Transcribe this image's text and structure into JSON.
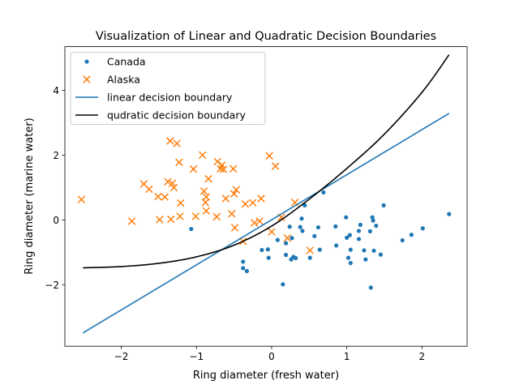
{
  "chart_data": {
    "type": "scatter",
    "title": "Visualization of Linear and Quadratic Decision Boundaries",
    "xlabel": "Ring diameter (fresh water)",
    "ylabel": "Ring diameter (marine water)",
    "xlim": [
      -2.75,
      2.6
    ],
    "ylim": [
      -3.9,
      5.35
    ],
    "xticks": [
      -2,
      -1,
      0,
      1,
      2
    ],
    "yticks": [
      -2,
      0,
      2,
      4
    ],
    "legend_position": "top-left",
    "grid": false,
    "series": [
      {
        "name": "Canada",
        "kind": "scatter",
        "marker": "dot",
        "color": "#1f77b4",
        "points": [
          [
            -1.07,
            -0.28
          ],
          [
            -0.38,
            -1.29
          ],
          [
            -0.38,
            -1.49
          ],
          [
            -0.33,
            -1.58
          ],
          [
            -0.13,
            -0.93
          ],
          [
            -0.05,
            -0.91
          ],
          [
            -0.04,
            -1.17
          ],
          [
            0.08,
            -0.62
          ],
          [
            0.15,
            -1.99
          ],
          [
            0.19,
            -0.72
          ],
          [
            0.19,
            -1.08
          ],
          [
            0.24,
            -0.21
          ],
          [
            0.26,
            -1.22
          ],
          [
            0.27,
            -0.56
          ],
          [
            0.29,
            -1.14
          ],
          [
            0.32,
            -1.18
          ],
          [
            0.38,
            -0.22
          ],
          [
            0.4,
            0.04
          ],
          [
            0.41,
            -0.34
          ],
          [
            0.44,
            0.45
          ],
          [
            0.51,
            -1.17
          ],
          [
            0.57,
            -0.5
          ],
          [
            0.62,
            -0.23
          ],
          [
            0.64,
            -0.92
          ],
          [
            0.69,
            0.85
          ],
          [
            0.85,
            -0.2
          ],
          [
            0.86,
            -0.79
          ],
          [
            0.99,
            0.08
          ],
          [
            1.0,
            -0.55
          ],
          [
            1.02,
            -1.17
          ],
          [
            1.04,
            -0.47
          ],
          [
            1.05,
            -1.33
          ],
          [
            1.05,
            -0.92
          ],
          [
            1.16,
            -0.34
          ],
          [
            1.16,
            -0.59
          ],
          [
            1.18,
            -0.15
          ],
          [
            1.23,
            -0.94
          ],
          [
            1.25,
            -1.22
          ],
          [
            1.31,
            -0.35
          ],
          [
            1.32,
            -2.09
          ],
          [
            1.34,
            0.08
          ],
          [
            1.35,
            -0.02
          ],
          [
            1.36,
            -0.95
          ],
          [
            1.39,
            -0.18
          ],
          [
            1.45,
            -1.07
          ],
          [
            1.49,
            0.45
          ],
          [
            1.74,
            -0.63
          ],
          [
            1.86,
            -0.46
          ],
          [
            2.01,
            -0.26
          ],
          [
            2.36,
            0.18
          ]
        ]
      },
      {
        "name": "Alaska",
        "kind": "scatter",
        "marker": "x",
        "color": "#ff7f0e",
        "points": [
          [
            -2.53,
            0.63
          ],
          [
            -1.86,
            -0.04
          ],
          [
            -1.7,
            1.11
          ],
          [
            -1.63,
            0.95
          ],
          [
            -1.51,
            0.72
          ],
          [
            -1.49,
            0.01
          ],
          [
            -1.42,
            0.71
          ],
          [
            -1.38,
            1.18
          ],
          [
            -1.35,
            2.44
          ],
          [
            -1.34,
            0.02
          ],
          [
            -1.32,
            1.13
          ],
          [
            -1.3,
            1.0
          ],
          [
            -1.26,
            2.36
          ],
          [
            -1.23,
            1.78
          ],
          [
            -1.22,
            0.11
          ],
          [
            -1.21,
            0.52
          ],
          [
            -1.04,
            1.57
          ],
          [
            -1.01,
            0.11
          ],
          [
            -0.92,
            2.0
          ],
          [
            -0.9,
            0.89
          ],
          [
            -0.88,
            0.54
          ],
          [
            -0.87,
            0.71
          ],
          [
            -0.87,
            0.28
          ],
          [
            -0.84,
            1.27
          ],
          [
            -0.73,
            0.1
          ],
          [
            -0.72,
            1.8
          ],
          [
            -0.68,
            1.58
          ],
          [
            -0.66,
            1.69
          ],
          [
            -0.64,
            1.56
          ],
          [
            -0.61,
            0.66
          ],
          [
            -0.53,
            0.19
          ],
          [
            -0.51,
            1.58
          ],
          [
            -0.5,
            0.81
          ],
          [
            -0.49,
            -0.24
          ],
          [
            -0.47,
            0.93
          ],
          [
            -0.38,
            -0.66
          ],
          [
            -0.35,
            0.49
          ],
          [
            -0.25,
            0.53
          ],
          [
            -0.23,
            -0.09
          ],
          [
            -0.16,
            -0.04
          ],
          [
            -0.14,
            0.66
          ],
          [
            -0.03,
            1.98
          ],
          [
            0.0,
            -0.37
          ],
          [
            0.05,
            1.66
          ],
          [
            0.13,
            0.08
          ],
          [
            0.21,
            -0.56
          ],
          [
            0.31,
            0.54
          ],
          [
            0.51,
            -0.94
          ]
        ]
      },
      {
        "name": "linear decision boundary",
        "kind": "line",
        "color": "#1f77b4",
        "points": [
          [
            -2.51,
            -3.49
          ],
          [
            2.36,
            3.29
          ]
        ]
      },
      {
        "name": "qudratic decision boundary",
        "kind": "line",
        "color": "#000000",
        "points": [
          [
            -2.51,
            -1.48
          ],
          [
            -2.0,
            -1.44
          ],
          [
            -1.5,
            -1.34
          ],
          [
            -1.0,
            -1.14
          ],
          [
            -0.5,
            -0.78
          ],
          [
            0.0,
            -0.19
          ],
          [
            0.5,
            0.64
          ],
          [
            1.0,
            1.59
          ],
          [
            1.5,
            2.65
          ],
          [
            2.0,
            3.94
          ],
          [
            2.36,
            5.1
          ]
        ]
      }
    ]
  }
}
